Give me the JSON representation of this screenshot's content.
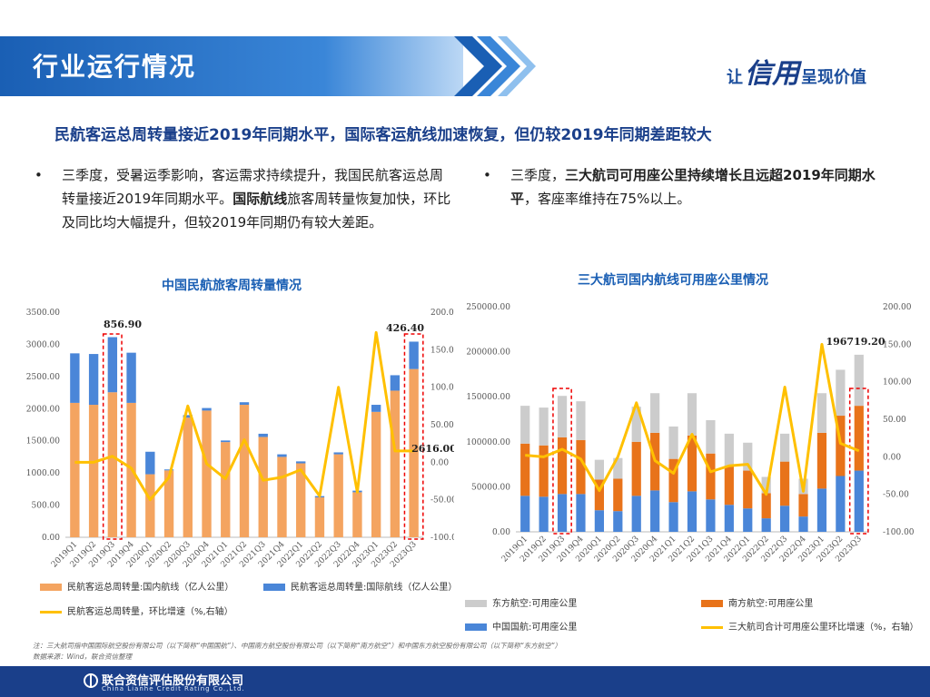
{
  "header": {
    "title": "行业运行情况",
    "slogan_prefix": "让",
    "slogan_big": "信用",
    "slogan_suffix": "呈现价值"
  },
  "headline": "民航客运总周转量接近2019年同期水平，国际客运航线加速恢复，但仍较2019年同期差距较大",
  "bullets": {
    "left": {
      "p1": "三季度，受暑运季影响，客运需求持续提升，我国民航客运总周转量接近2019年同期水平。",
      "b1": "国际航线",
      "p2": "旅客周转量恢复加快，环比及同比均大幅提升，但较2019年同期仍有较大差距。"
    },
    "right": {
      "p1": "三季度，",
      "b1": "三大航司可用座公里持续增长且远超2019年同期水平",
      "p2": "，客座率维持在75%以上。"
    }
  },
  "chart_data": [
    {
      "type": "bar",
      "title": "中国民航旅客周转量情况",
      "categories": [
        "2019Q1",
        "2019Q2",
        "2019Q3",
        "2019Q4",
        "2020Q1",
        "2020Q2",
        "2020Q3",
        "2020Q4",
        "2021Q1",
        "2021Q2",
        "2021Q3",
        "2021Q4",
        "2022Q1",
        "2022Q2",
        "2022Q3",
        "2022Q4",
        "2023Q1",
        "2023Q2",
        "2023Q3"
      ],
      "stacked": true,
      "series": [
        {
          "name": "民航客运总周转量:国内航线（亿人公里）",
          "color": "#f4a460",
          "axis": "left",
          "values": [
            2090,
            2060,
            2255,
            2090,
            980,
            1040,
            1860,
            1970,
            1480,
            2060,
            1560,
            1250,
            1150,
            620,
            1290,
            700,
            1950,
            2280,
            2616
          ]
        },
        {
          "name": "民航客运总周转量:国际航线（亿人公里）",
          "color": "#4a86d8",
          "axis": "left",
          "values": [
            770,
            790,
            857,
            780,
            350,
            15,
            40,
            40,
            25,
            40,
            50,
            40,
            30,
            20,
            30,
            25,
            110,
            240,
            426
          ]
        },
        {
          "name": "民航客运总周转量，环比增速（%,右轴）",
          "color": "#ffc000",
          "axis": "right",
          "type": "line",
          "values": [
            0,
            0,
            8,
            -8,
            -50,
            -20,
            75,
            -2,
            -22,
            30,
            -24,
            -20,
            -10,
            -45,
            100,
            -40,
            173,
            15,
            15
          ]
        }
      ],
      "annotations": [
        "856.90",
        "426.40",
        "2616.00"
      ],
      "ylim": [
        0,
        3500
      ],
      "yticks": [
        "0.00",
        "500.00",
        "1000.00",
        "1500.00",
        "2000.00",
        "2500.00",
        "3000.00",
        "3500.00"
      ],
      "y2lim": [
        -100,
        200
      ],
      "y2ticks": [
        "-100.00",
        "-50.00",
        "0.00",
        "50.00",
        "100.00",
        "150.00",
        "200.00"
      ],
      "highlight": [
        "2019Q3",
        "2023Q3"
      ]
    },
    {
      "type": "bar",
      "title": "三大航司国内航线可用座公里情况",
      "categories": [
        "2019Q1",
        "2019Q2",
        "2019Q3",
        "2019Q4",
        "2020Q1",
        "2020Q2",
        "2020Q3",
        "2020Q4",
        "2021Q1",
        "2021Q2",
        "2021Q3",
        "2021Q4",
        "2022Q1",
        "2022Q2",
        "2022Q3",
        "2022Q4",
        "2023Q1",
        "2023Q2",
        "2023Q3"
      ],
      "stacked": true,
      "series": [
        {
          "name": "中国国航:可用座公里",
          "color": "#4a86d8",
          "axis": "left",
          "values": [
            40000,
            39000,
            42000,
            42000,
            24000,
            23000,
            40000,
            46000,
            33000,
            45000,
            36000,
            30000,
            26000,
            15000,
            29000,
            17000,
            48000,
            62000,
            68000
          ]
        },
        {
          "name": "南方航空:可用座公里",
          "color": "#e8731a",
          "axis": "left",
          "values": [
            58000,
            57000,
            63000,
            60000,
            34000,
            36000,
            60000,
            64000,
            48000,
            62000,
            51000,
            43000,
            42000,
            28000,
            49000,
            25000,
            62000,
            67000,
            72000
          ]
        },
        {
          "name": "东方航空:可用座公里",
          "color": "#cccccc",
          "axis": "left",
          "values": [
            42000,
            42000,
            46000,
            43000,
            22000,
            23000,
            39000,
            44000,
            36000,
            47000,
            37000,
            36000,
            31000,
            18000,
            31000,
            17000,
            44000,
            51000,
            56719
          ]
        },
        {
          "name": "三大航司合计可用座公里环比增速（%，右轴）",
          "color": "#ffc000",
          "axis": "right",
          "type": "line",
          "values": [
            2,
            0,
            10,
            -3,
            -45,
            0,
            72,
            -5,
            -22,
            30,
            -20,
            -12,
            -10,
            -50,
            93,
            -46,
            150,
            18,
            8
          ]
        }
      ],
      "annotations": [
        "196719.20"
      ],
      "ylim": [
        0,
        250000
      ],
      "yticks": [
        "0.00",
        "50000.00",
        "100000.00",
        "150000.00",
        "200000.00",
        "250000.00"
      ],
      "y2lim": [
        -100,
        200
      ],
      "y2ticks": [
        "-100.00",
        "-50.00",
        "0.00",
        "50.00",
        "100.00",
        "150.00",
        "200.00"
      ],
      "highlight": [
        "2019Q3",
        "2023Q3"
      ]
    }
  ],
  "footnote": {
    "line1": "注：三大航司指中国国际航空股份有限公司（以下简称“中国国航”）、中国南方航空股份有限公司（以下简称“南方航空”）和中国东方航空股份有限公司（以下简称“东方航空”）",
    "line2": "数据来源：Wind，联合资信整理"
  },
  "footer": {
    "company": "联合资信评估股份有限公司",
    "company_en": "China Lianhe Credit Rating Co.,Ltd."
  },
  "colors": {
    "brand": "#1a3f8a",
    "accent": "#ffc000",
    "banner": "#1a5fb4"
  }
}
